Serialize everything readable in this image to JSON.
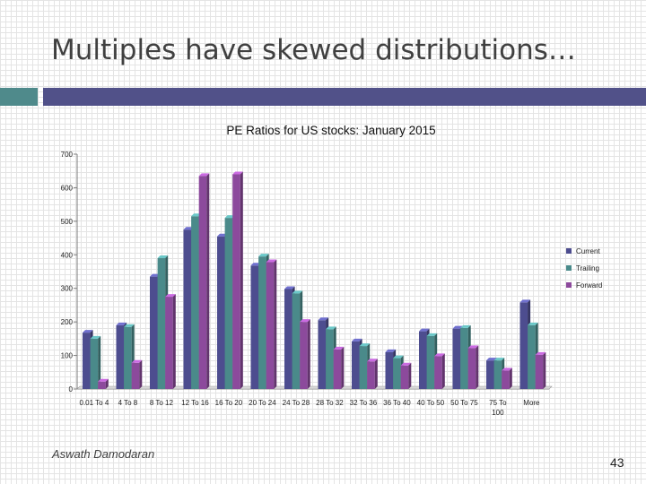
{
  "slide": {
    "title": "Multiples have skewed distributions…",
    "author": "Aswath Damodaran",
    "page_number": "43"
  },
  "colors": {
    "accent_teal": "#4f8a8b",
    "accent_navy": "#515189",
    "current": "#4d4d8f",
    "trailing": "#4a8a8a",
    "forward": "#8c4a9c"
  },
  "chart_data": {
    "type": "bar",
    "title": "PE Ratios for US stocks: January 2015",
    "xlabel": "",
    "ylabel": "",
    "ylim": [
      0,
      700
    ],
    "yticks": [
      0,
      100,
      200,
      300,
      400,
      500,
      600,
      700
    ],
    "grid": false,
    "legend_position": "right",
    "categories": [
      [
        "0.01 To 4"
      ],
      [
        "4 To 8"
      ],
      [
        "8 To 12"
      ],
      [
        "12 To 16"
      ],
      [
        "16 To 20"
      ],
      [
        "20 To 24"
      ],
      [
        "24 To 28"
      ],
      [
        "28 To 32"
      ],
      [
        "32 To 36"
      ],
      [
        "36 To 40"
      ],
      [
        "40 To 50"
      ],
      [
        "50 To 75"
      ],
      [
        "75 To",
        "100"
      ],
      [
        "More"
      ]
    ],
    "series": [
      {
        "name": "Current",
        "color": "#4d4d8f",
        "values": [
          168,
          190,
          335,
          475,
          455,
          368,
          298,
          205,
          142,
          110,
          172,
          180,
          85,
          258
        ]
      },
      {
        "name": "Trailing",
        "color": "#4a8a8a",
        "values": [
          150,
          185,
          390,
          515,
          510,
          395,
          285,
          178,
          128,
          92,
          158,
          182,
          85,
          190
        ]
      },
      {
        "name": "Forward",
        "color": "#8c4a9c",
        "values": [
          22,
          78,
          275,
          635,
          640,
          378,
          200,
          118,
          82,
          70,
          98,
          122,
          55,
          102
        ]
      }
    ]
  }
}
